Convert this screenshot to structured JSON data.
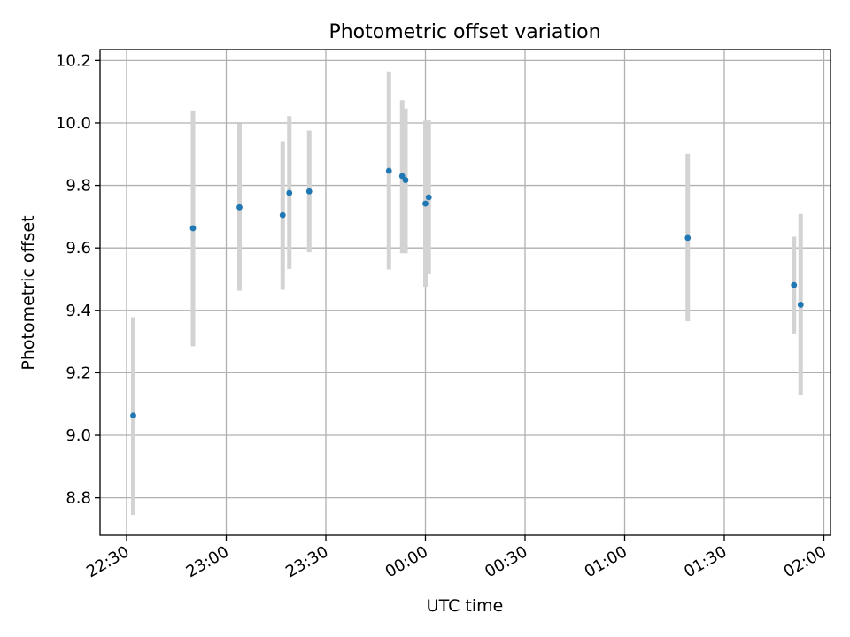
{
  "chart_data": {
    "type": "scatter",
    "title": "Photometric offset variation",
    "xlabel": "UTC time",
    "ylabel": "Photometric offset",
    "grid": true,
    "x_is_time": true,
    "xlim": [
      "22:22",
      "02:02"
    ],
    "ylim": [
      8.68,
      10.235
    ],
    "xticks": [
      "22:30",
      "23:00",
      "23:30",
      "00:00",
      "00:30",
      "01:00",
      "01:30",
      "02:00"
    ],
    "yticks": [
      "8.8",
      "9.0",
      "9.2",
      "9.4",
      "9.6",
      "9.8",
      "10.0",
      "10.2"
    ],
    "points": [
      {
        "t": "22:32",
        "y": 9.063,
        "lo": 8.745,
        "hi": 9.378
      },
      {
        "t": "22:50",
        "y": 9.663,
        "lo": 9.285,
        "hi": 10.04
      },
      {
        "t": "23:04",
        "y": 9.73,
        "lo": 9.463,
        "hi": 9.998
      },
      {
        "t": "23:17",
        "y": 9.705,
        "lo": 9.466,
        "hi": 9.942
      },
      {
        "t": "23:19",
        "y": 9.776,
        "lo": 9.533,
        "hi": 10.022
      },
      {
        "t": "23:25",
        "y": 9.781,
        "lo": 9.586,
        "hi": 9.976
      },
      {
        "t": "23:49",
        "y": 9.847,
        "lo": 9.531,
        "hi": 10.165
      },
      {
        "t": "23:53",
        "y": 9.83,
        "lo": 9.583,
        "hi": 10.073
      },
      {
        "t": "23:54",
        "y": 9.817,
        "lo": 9.583,
        "hi": 10.046
      },
      {
        "t": "00:00",
        "y": 9.742,
        "lo": 9.476,
        "hi": 10.007
      },
      {
        "t": "00:01",
        "y": 9.762,
        "lo": 9.516,
        "hi": 10.008
      },
      {
        "t": "01:19",
        "y": 9.632,
        "lo": 9.365,
        "hi": 9.901
      },
      {
        "t": "01:51",
        "y": 9.481,
        "lo": 9.326,
        "hi": 9.636
      },
      {
        "t": "01:53",
        "y": 9.418,
        "lo": 9.13,
        "hi": 9.709
      }
    ],
    "colors": {
      "marker": "#1f77b4",
      "errorbar": "#d3d3d3",
      "grid": "#b0b0b0",
      "axes": "#000000"
    }
  }
}
